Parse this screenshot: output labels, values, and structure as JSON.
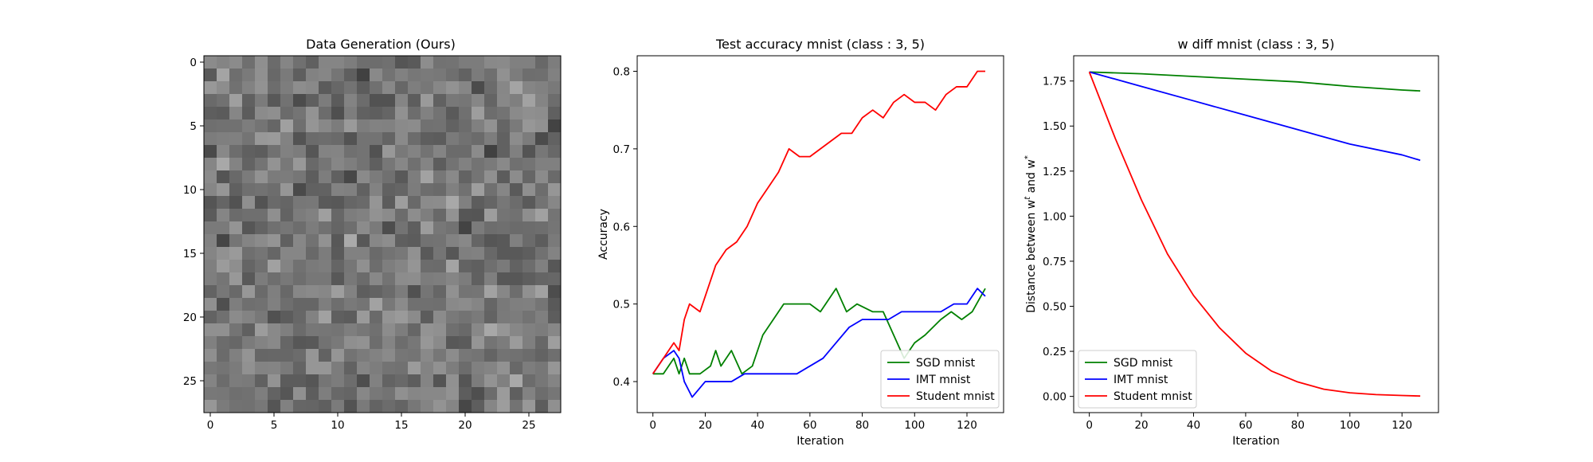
{
  "colors": {
    "sgd": "#008000",
    "imt": "#0000ff",
    "student": "#ff0000"
  },
  "panels": [
    {
      "id": "image",
      "title": "Data Generation (Ours)",
      "xticks": [
        0,
        5,
        10,
        15,
        20,
        25
      ],
      "yticks": [
        0,
        5,
        10,
        15,
        20,
        25
      ]
    },
    {
      "id": "acc",
      "title": "Test accuracy mnist (class : 3, 5)",
      "xlabel": "Iteration",
      "ylabel": "Accuracy",
      "xticks": [
        0,
        20,
        40,
        60,
        80,
        100,
        120
      ],
      "yticks": [
        "0.4",
        "0.5",
        "0.6",
        "0.7",
        "0.8"
      ],
      "legend": [
        "SGD mnist",
        "IMT mnist",
        "Student mnist"
      ]
    },
    {
      "id": "wdiff",
      "title": "w diff mnist (class : 3, 5)",
      "xlabel": "Iteration",
      "ylabel": "Distance between w",
      "ylabel_sup1": "t",
      "ylabel_mid": " and w",
      "ylabel_sup2": "*",
      "xticks": [
        0,
        20,
        40,
        60,
        80,
        100,
        120
      ],
      "yticks": [
        "0.00",
        "0.25",
        "0.50",
        "0.75",
        "1.00",
        "1.25",
        "1.50",
        "1.75"
      ],
      "legend": [
        "SGD mnist",
        "IMT mnist",
        "Student mnist"
      ]
    }
  ],
  "chart_data": [
    {
      "type": "heatmap",
      "title": "Data Generation (Ours)",
      "colormap": "gray",
      "rows": 28,
      "cols": 28,
      "xlim": [
        -0.5,
        27.5
      ],
      "ylim": [
        27.5,
        -0.5
      ],
      "values": "random grayscale noise (28x28)",
      "grid": false
    },
    {
      "type": "line",
      "title": "Test accuracy mnist (class : 3, 5)",
      "xlabel": "Iteration",
      "ylabel": "Accuracy",
      "xlim": [
        -6,
        134
      ],
      "ylim": [
        0.36,
        0.82
      ],
      "grid": false,
      "legend_position": "lower-right",
      "series": [
        {
          "name": "SGD mnist",
          "x": [
            0,
            4,
            8,
            10,
            12,
            14,
            18,
            22,
            24,
            26,
            30,
            34,
            38,
            42,
            46,
            50,
            56,
            60,
            64,
            70,
            74,
            78,
            84,
            88,
            92,
            96,
            100,
            104,
            110,
            114,
            118,
            122,
            127
          ],
          "y": [
            0.41,
            0.41,
            0.43,
            0.41,
            0.43,
            0.41,
            0.41,
            0.42,
            0.44,
            0.42,
            0.44,
            0.41,
            0.42,
            0.46,
            0.48,
            0.5,
            0.5,
            0.5,
            0.49,
            0.52,
            0.49,
            0.5,
            0.49,
            0.49,
            0.46,
            0.43,
            0.45,
            0.46,
            0.48,
            0.49,
            0.48,
            0.49,
            0.52
          ]
        },
        {
          "name": "IMT mnist",
          "x": [
            0,
            4,
            8,
            10,
            12,
            15,
            20,
            25,
            30,
            35,
            40,
            45,
            50,
            55,
            60,
            65,
            70,
            75,
            80,
            85,
            90,
            95,
            100,
            105,
            110,
            115,
            120,
            124,
            127
          ],
          "y": [
            0.41,
            0.43,
            0.44,
            0.43,
            0.4,
            0.38,
            0.4,
            0.4,
            0.4,
            0.41,
            0.41,
            0.41,
            0.41,
            0.41,
            0.42,
            0.43,
            0.45,
            0.47,
            0.48,
            0.48,
            0.48,
            0.49,
            0.49,
            0.49,
            0.49,
            0.5,
            0.5,
            0.52,
            0.51
          ]
        },
        {
          "name": "Student mnist",
          "x": [
            0,
            4,
            8,
            10,
            12,
            14,
            18,
            20,
            24,
            28,
            32,
            36,
            40,
            44,
            48,
            52,
            56,
            60,
            64,
            68,
            72,
            76,
            80,
            84,
            88,
            92,
            96,
            100,
            104,
            108,
            112,
            116,
            120,
            124,
            127
          ],
          "y": [
            0.41,
            0.43,
            0.45,
            0.44,
            0.48,
            0.5,
            0.49,
            0.51,
            0.55,
            0.57,
            0.58,
            0.6,
            0.63,
            0.65,
            0.67,
            0.7,
            0.69,
            0.69,
            0.7,
            0.71,
            0.72,
            0.72,
            0.74,
            0.75,
            0.74,
            0.76,
            0.77,
            0.76,
            0.76,
            0.75,
            0.77,
            0.78,
            0.78,
            0.8,
            0.8
          ]
        }
      ]
    },
    {
      "type": "line",
      "title": "w diff mnist (class : 3, 5)",
      "xlabel": "Iteration",
      "ylabel": "Distance between w^t and w^*",
      "xlim": [
        -6,
        134
      ],
      "ylim": [
        -0.09,
        1.89
      ],
      "grid": false,
      "legend_position": "lower-left",
      "series": [
        {
          "name": "SGD mnist",
          "x": [
            0,
            20,
            40,
            60,
            80,
            100,
            120,
            127
          ],
          "y": [
            1.8,
            1.79,
            1.775,
            1.76,
            1.745,
            1.72,
            1.7,
            1.695
          ]
        },
        {
          "name": "IMT mnist",
          "x": [
            0,
            20,
            40,
            60,
            80,
            100,
            120,
            127
          ],
          "y": [
            1.8,
            1.72,
            1.64,
            1.56,
            1.48,
            1.4,
            1.34,
            1.31
          ]
        },
        {
          "name": "Student mnist",
          "x": [
            0,
            10,
            20,
            30,
            40,
            50,
            60,
            70,
            80,
            90,
            100,
            110,
            120,
            127
          ],
          "y": [
            1.8,
            1.43,
            1.09,
            0.79,
            0.56,
            0.38,
            0.24,
            0.14,
            0.08,
            0.04,
            0.02,
            0.01,
            0.005,
            0.002
          ]
        }
      ]
    }
  ]
}
